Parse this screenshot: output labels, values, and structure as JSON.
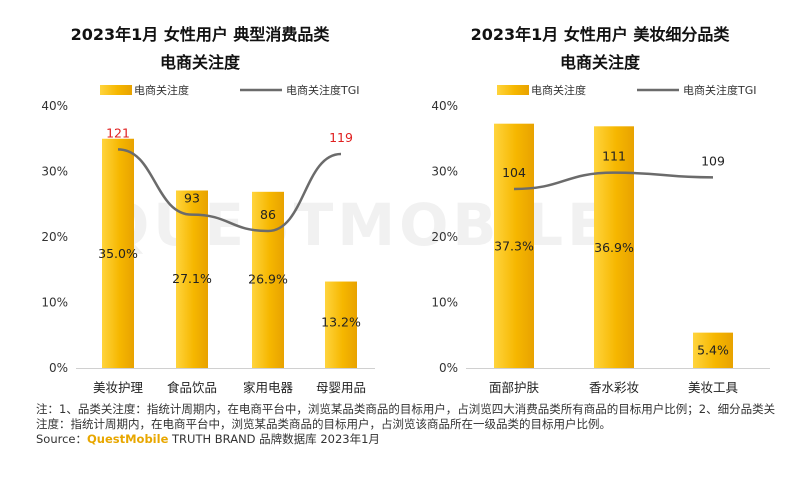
{
  "watermark": "QUESTMOBILE",
  "colors": {
    "bar": "#f6b700",
    "bar_light": "#ffd43d",
    "line": "#6b6b6b",
    "highlight": "#e02020"
  },
  "chart_data": [
    {
      "type": "bar",
      "title_line1": "2023年1月 女性用户 典型消费品类",
      "title_line2": "电商关注度",
      "legend": [
        "电商关注度",
        "电商关注度TGI"
      ],
      "categories": [
        "美妆护理",
        "食品饮品",
        "家用电器",
        "母婴用品"
      ],
      "values": [
        35.0,
        27.1,
        26.9,
        13.2
      ],
      "value_labels": [
        "35.0%",
        "27.1%",
        "26.9%",
        "13.2%"
      ],
      "tgi": [
        121,
        93,
        86,
        119
      ],
      "tgi_highlight": [
        true,
        false,
        false,
        true
      ],
      "yticks": [
        "0%",
        "10%",
        "20%",
        "30%",
        "40%"
      ],
      "ylim": [
        0,
        40
      ]
    },
    {
      "type": "bar",
      "title_line1": "2023年1月 女性用户 美妆细分品类",
      "title_line2": "电商关注度",
      "legend": [
        "电商关注度",
        "电商关注度TGI"
      ],
      "categories": [
        "面部护肤",
        "香水彩妆",
        "美妆工具"
      ],
      "values": [
        37.3,
        36.9,
        5.4
      ],
      "value_labels": [
        "37.3%",
        "36.9%",
        "5.4%"
      ],
      "tgi": [
        104,
        111,
        109
      ],
      "tgi_highlight": [
        false,
        false,
        false
      ],
      "yticks": [
        "0%",
        "10%",
        "20%",
        "30%",
        "40%"
      ],
      "ylim": [
        0,
        40
      ]
    }
  ],
  "footer": {
    "note1": "注：1、品类关注度：指统计周期内，在电商平台中，浏览某品类商品的目标用户，占浏览四大消费品类所有商品的目标用户比例；2、细分品类关注度：指统计周期内，在电商平台中，浏览某品类商品的目标用户，占浏览该商品所在一级品类的目标用户比例。",
    "source_prefix": "Source：",
    "source_brand": "QuestMobile",
    "source_rest": " TRUTH BRAND 品牌数据库 2023年1月"
  }
}
